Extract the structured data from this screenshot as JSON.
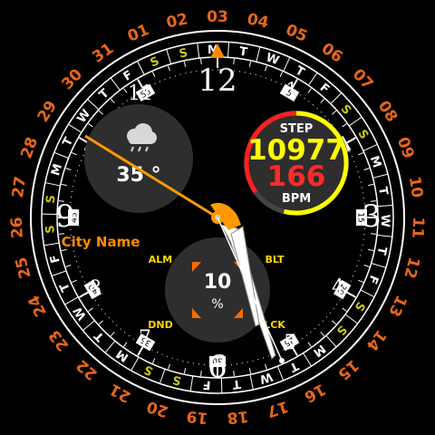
{
  "colors": {
    "accent": "#ff8c00",
    "date_text": "#e8661a",
    "step_value": "#ffff00",
    "bpm_value": "#ff2a2a",
    "weekend": "#c8c814",
    "subdial_bg": "#2e2e2e",
    "ring_white": "#ffffff",
    "complication_label": "#ffd700"
  },
  "dates": [
    "01",
    "02",
    "03",
    "04",
    "05",
    "06",
    "07",
    "08",
    "09",
    "10",
    "11",
    "12",
    "13",
    "14",
    "15",
    "16",
    "17",
    "18",
    "19",
    "20",
    "21",
    "22",
    "23",
    "24",
    "25",
    "26",
    "27",
    "28",
    "29",
    "30",
    "31"
  ],
  "weekday_ring": [
    "S",
    "S",
    "M",
    "T",
    "W",
    "T",
    "F",
    "S",
    "S",
    "M",
    "T",
    "W",
    "T",
    "F",
    "S",
    "S",
    "M",
    "T",
    "W",
    "T",
    "F",
    "S",
    "S",
    "M",
    "T",
    "W",
    "T",
    "F",
    "S",
    "S",
    "M",
    "T",
    "W",
    "T",
    "F"
  ],
  "hour_numerals": {
    "12": "12",
    "1": "1",
    "3": "3",
    "4": "4",
    "5": "5",
    "6": "6",
    "7": "7",
    "8": "8",
    "9": "9",
    "11": "11"
  },
  "minute_markers": [
    "5",
    "10",
    "15",
    "20",
    "25",
    "30",
    "35",
    "40",
    "45",
    "50",
    "55"
  ],
  "weather": {
    "icon": "cloud-rain-icon",
    "temperature": "35 °"
  },
  "health": {
    "step_label": "STEP",
    "steps": "10977",
    "bpm_value": "166",
    "bpm_label": "BPM",
    "step_progress": 0.72
  },
  "location": {
    "city": "City Name"
  },
  "battery": {
    "value": "10",
    "unit": "%",
    "alm": "ALM",
    "blt": "BLT",
    "dnd": "DND",
    "lck": "LCK"
  }
}
